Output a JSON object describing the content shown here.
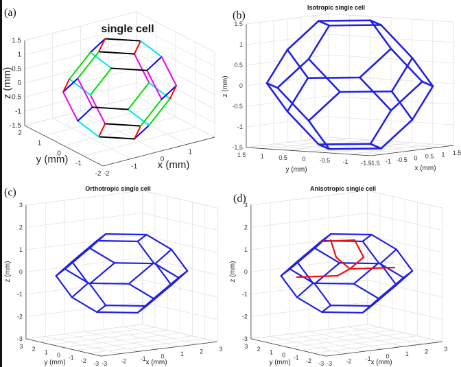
{
  "panels": [
    {
      "label": "(a)",
      "title": "single cell",
      "xlabel": "x (mm)",
      "ylabel": "y (mm)",
      "zlabel": "z (mm)",
      "limits": {
        "x": [
          -2,
          2
        ],
        "y": [
          -2,
          2
        ],
        "z": [
          -1.5,
          1.5
        ]
      },
      "xticks": [
        -2,
        -1,
        0,
        1
      ],
      "yticks": [
        2,
        1,
        0,
        -1,
        -2
      ],
      "zticks": [
        1.5,
        1,
        0.5,
        0,
        -0.5,
        -1,
        -1.5
      ],
      "edge_coloring": "by-direction",
      "edge_colors": {
        "x-y": "#000000",
        "x+y": "#ff0000",
        "y-z": "#0000ff",
        "x+z": "#00dd00",
        "x-z": "#00e5ee",
        "y+z": "#ee00ee"
      }
    },
    {
      "label": "(b)",
      "title": "Isotropic single cell",
      "xlabel": "x (mm)",
      "ylabel": "y (mm)",
      "zlabel": "z (mm)",
      "limits": {
        "x": [
          -1.5,
          1.5
        ],
        "y": [
          -1.5,
          1.5
        ],
        "z": [
          -1.5,
          1.5
        ]
      },
      "xticks": [
        -1.5,
        -1,
        -0.5,
        0,
        0.5,
        1,
        1.5
      ],
      "yticks": [
        1.5,
        1,
        0.5,
        0,
        -0.5,
        -1,
        -1.5
      ],
      "zticks": [
        1.5,
        1,
        0.5,
        0,
        -0.5,
        -1,
        -1.5
      ],
      "edge_color": "#2020e8"
    },
    {
      "label": "(c)",
      "title": "Orthotropic single cell",
      "xlabel": "x (mm)",
      "ylabel": "y (mm)",
      "zlabel": "z (mm)",
      "limits": {
        "x": [
          -3,
          3
        ],
        "y": [
          -3,
          3
        ],
        "z": [
          -3,
          3
        ]
      },
      "xticks": [
        -3,
        -2,
        -1,
        0,
        1,
        2,
        3
      ],
      "yticks": [
        3,
        2,
        1,
        0,
        -1,
        -2,
        -3
      ],
      "zticks": [
        3,
        2,
        1,
        0,
        -1,
        -2,
        -3
      ],
      "edge_color": "#2020e8"
    },
    {
      "label": "(d)",
      "title": "Anisotropic single cell",
      "xlabel": "x (mm)",
      "ylabel": "y (mm)",
      "zlabel": "z (mm)",
      "limits": {
        "x": [
          -3,
          3
        ],
        "y": [
          -3,
          3
        ],
        "z": [
          -3,
          3
        ]
      },
      "xticks": [
        -3,
        -2,
        -1,
        0,
        1,
        2,
        3
      ],
      "yticks": [
        3,
        2,
        1,
        0,
        -1,
        -2,
        -3
      ],
      "zticks": [
        3,
        2,
        1,
        0,
        -1,
        -2,
        -3
      ],
      "edge_color": "#2020e8",
      "highlight_color": "#ee1111"
    }
  ]
}
